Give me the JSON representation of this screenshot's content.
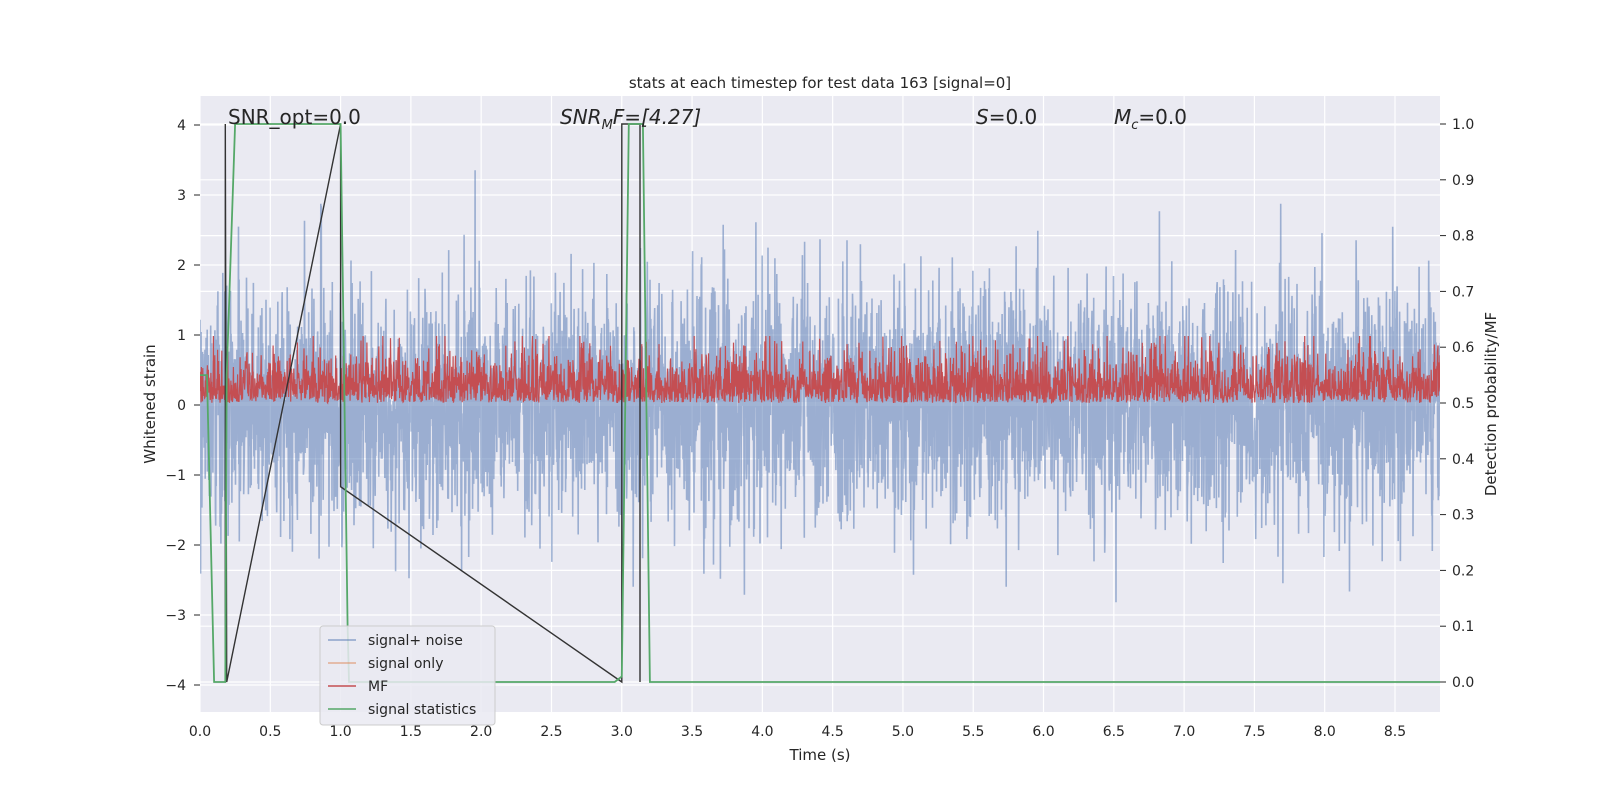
{
  "chart_data": {
    "type": "line",
    "title": "stats at each timestep for test data 163 [signal=0]",
    "xlabel": "Time (s)",
    "ylabel": "Whitened strain",
    "y2label": "Detection probability/MF",
    "xlim": [
      0.0,
      9.0
    ],
    "ylim": [
      -4.4,
      4.4
    ],
    "y2lim": [
      -0.05,
      1.05
    ],
    "xticks": [
      "0.0",
      "0.5",
      "1.0",
      "1.5",
      "2.0",
      "2.5",
      "3.0",
      "3.5",
      "4.0",
      "4.5",
      "5.0",
      "5.5",
      "6.0",
      "6.5",
      "7.0",
      "7.5",
      "8.0",
      "8.5"
    ],
    "yticks": [
      "4",
      "3",
      "2",
      "1",
      "0",
      "−1",
      "−2",
      "−3",
      "−4"
    ],
    "y2ticks": [
      "1.0",
      "0.9",
      "0.8",
      "0.7",
      "0.6",
      "0.5",
      "0.4",
      "0.3",
      "0.2",
      "0.1",
      "0.0"
    ],
    "grid": true,
    "legend_placement": "lower-left",
    "annotations": {
      "snr_opt": "SNR_opt=0.0",
      "snr_mf_main": "SNR",
      "snr_mf_sub": "M",
      "snr_mf_rest": "F=[4.27]",
      "s_main": "S",
      "s_rest": "=0.0",
      "mc_main": "M",
      "mc_sub": "c",
      "mc_rest": "=0.0"
    },
    "series": [
      {
        "name": "signal+ noise",
        "color": "#4c72b0",
        "axis": "left",
        "description_stats": {
          "mean": 0.0,
          "std": 0.85,
          "max_abs": 4.0
        }
      },
      {
        "name": "signal only",
        "color": "#dd8452",
        "axis": "left",
        "values": []
      },
      {
        "name": "MF",
        "color": "#c44e52",
        "axis": "right",
        "description_stats": {
          "baseline": 0.5,
          "mean": 0.55,
          "max": 0.62
        }
      },
      {
        "name": "signal statistics",
        "color": "#55a868",
        "axis": "right",
        "x": [
          0.0,
          0.05,
          0.1,
          0.18,
          0.19,
          0.25,
          1.0,
          1.05,
          1.06,
          2.9,
          2.95,
          3.0,
          3.05,
          3.15,
          3.2,
          8.95
        ],
        "y": [
          0.55,
          0.55,
          0.0,
          0.0,
          0.55,
          1.0,
          1.0,
          0.1,
          0.0,
          0.0,
          0.0,
          0.01,
          1.0,
          1.0,
          0.0,
          0.0
        ]
      },
      {
        "name": "",
        "color": "#333333",
        "axis": "right",
        "x": [
          0.18,
          0.18,
          0.19,
          1.0,
          1.0,
          3.0,
          3.0,
          3.13,
          3.13
        ],
        "y": [
          0.0,
          1.0,
          0.0,
          1.0,
          0.35,
          0.0,
          1.0,
          1.0,
          0.0
        ]
      }
    ]
  }
}
